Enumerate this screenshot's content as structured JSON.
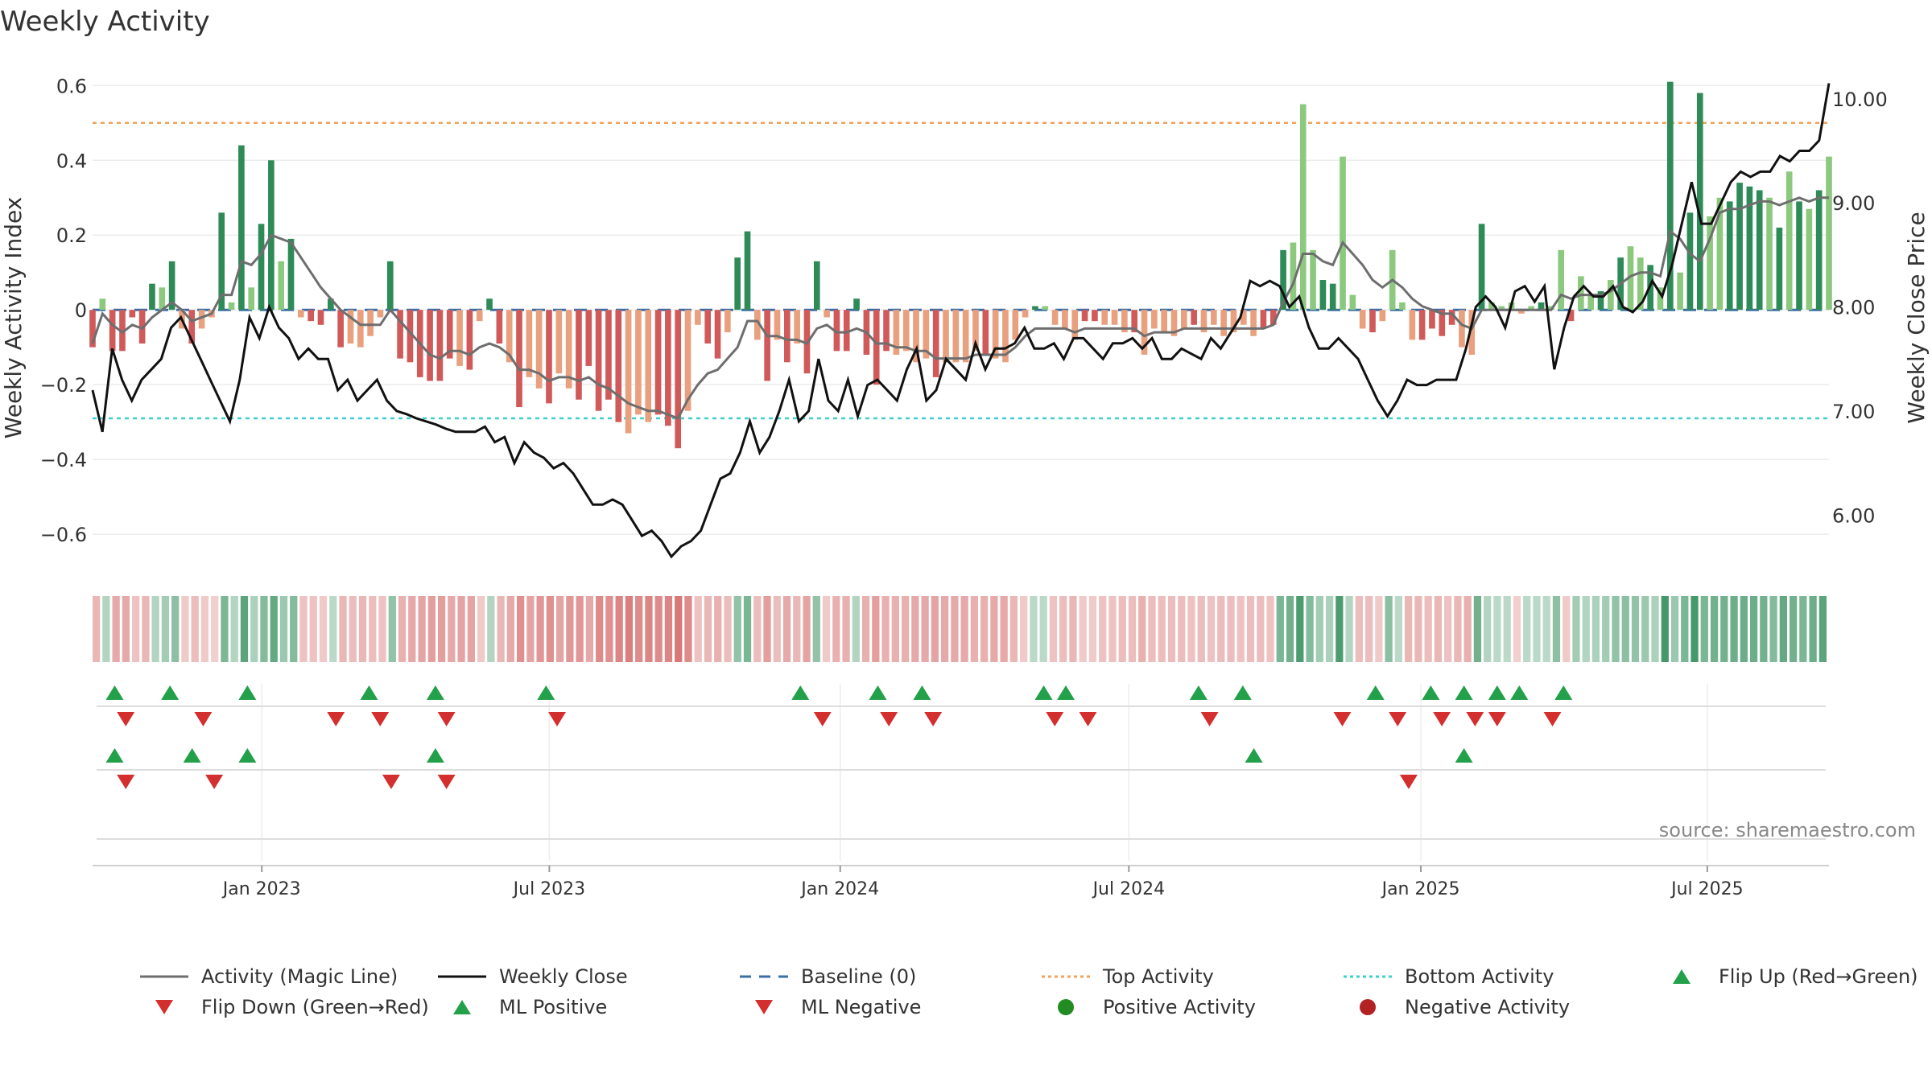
{
  "title": "Weekly Activity",
  "source": "source: sharemaestro.com",
  "colors": {
    "pos_strong": "#2e8b57",
    "pos_light": "#8cc97f",
    "neg_strong": "#d05a5a",
    "neg_light": "#e9a07e",
    "magic": "#6e6e6e",
    "close": "#111111",
    "baseline": "#3a6ea5",
    "top": "#f0a35a",
    "bottom": "#3fcfcf",
    "flip_up": "#22a04a",
    "flip_down": "#d32f2f",
    "pos_dot": "#228b22",
    "neg_dot": "#b22222"
  },
  "legend": [
    {
      "key": "magic",
      "label": "Activity (Magic Line)",
      "kind": "line"
    },
    {
      "key": "close",
      "label": "Weekly Close",
      "kind": "line"
    },
    {
      "key": "baseline",
      "label": "Baseline (0)",
      "kind": "dash"
    },
    {
      "key": "top",
      "label": "Top Activity",
      "kind": "dot"
    },
    {
      "key": "bottom",
      "label": "Bottom Activity",
      "kind": "dot"
    },
    {
      "key": "flip_up",
      "label": "Flip Up (Red→Green)",
      "kind": "up"
    },
    {
      "key": "flip_down",
      "label": "Flip Down (Green→Red)",
      "kind": "down"
    },
    {
      "key": "flip_up",
      "label": "ML Positive",
      "kind": "up"
    },
    {
      "key": "flip_down",
      "label": "ML Negative",
      "kind": "down"
    },
    {
      "key": "pos_dot",
      "label": "Positive Activity",
      "kind": "circle"
    },
    {
      "key": "neg_dot",
      "label": "Negative Activity",
      "kind": "circle"
    }
  ],
  "chart_data": {
    "type": "bar",
    "title": "Weekly Activity",
    "ylabel": "Weekly Activity Index",
    "y2label": "Weekly Close Price",
    "ylim": [
      -0.66,
      0.62
    ],
    "y2lim": [
      5.6,
      10.2
    ],
    "yticks": [
      0.6,
      0.4,
      0.2,
      0,
      -0.2,
      -0.4,
      -0.6
    ],
    "ytick_labels": [
      "0.6",
      "0.4",
      "0.2",
      "0",
      "−0.2",
      "−0.4",
      "−0.6"
    ],
    "y2ticks": [
      10,
      9,
      8,
      7,
      6
    ],
    "y2tick_labels": [
      "10.00",
      "9.00",
      "8.00",
      "7.00",
      "6.00"
    ],
    "top_activity": 0.5,
    "bottom_activity": -0.29,
    "x_start_week": 0,
    "x_end_week": 157,
    "xticks": [
      {
        "week": 15.3,
        "label": "Jan 2023"
      },
      {
        "week": 41.3,
        "label": "Jul 2023"
      },
      {
        "week": 67.6,
        "label": "Jan 2024"
      },
      {
        "week": 93.7,
        "label": "Jul 2024"
      },
      {
        "week": 120.1,
        "label": "Jan 2025"
      },
      {
        "week": 146,
        "label": "Jul 2025"
      }
    ],
    "activity": [
      -0.1,
      0.03,
      -0.11,
      -0.11,
      -0.02,
      -0.09,
      0.07,
      0.06,
      0.13,
      -0.05,
      -0.09,
      -0.05,
      -0.02,
      0.26,
      0.02,
      0.44,
      0.06,
      0.23,
      0.4,
      0.13,
      0.19,
      -0.02,
      -0.03,
      -0.04,
      0.03,
      -0.1,
      -0.09,
      -0.1,
      -0.07,
      -0.02,
      0.13,
      -0.13,
      -0.14,
      -0.18,
      -0.19,
      -0.19,
      -0.13,
      -0.15,
      -0.16,
      -0.03,
      0.03,
      -0.09,
      -0.14,
      -0.26,
      -0.18,
      -0.21,
      -0.25,
      -0.17,
      -0.21,
      -0.24,
      -0.15,
      -0.27,
      -0.24,
      -0.3,
      -0.33,
      -0.28,
      -0.3,
      -0.28,
      -0.31,
      -0.37,
      -0.27,
      -0.04,
      -0.09,
      -0.13,
      -0.06,
      0.14,
      0.21,
      -0.08,
      -0.19,
      -0.08,
      -0.14,
      -0.09,
      -0.17,
      0.13,
      -0.02,
      -0.11,
      -0.11,
      0.03,
      -0.12,
      -0.2,
      -0.11,
      -0.12,
      -0.11,
      -0.14,
      -0.13,
      -0.18,
      -0.14,
      -0.14,
      -0.14,
      -0.11,
      -0.12,
      -0.13,
      -0.14,
      -0.08,
      -0.02,
      0.01,
      0.01,
      -0.04,
      -0.05,
      -0.08,
      -0.03,
      -0.03,
      -0.04,
      -0.04,
      -0.06,
      -0.06,
      -0.12,
      -0.05,
      -0.06,
      -0.07,
      -0.05,
      -0.04,
      -0.06,
      -0.04,
      -0.07,
      -0.06,
      -0.04,
      -0.07,
      -0.05,
      -0.04,
      0.16,
      0.18,
      0.55,
      0.16,
      0.08,
      0.07,
      0.41,
      0.04,
      -0.05,
      -0.06,
      -0.03,
      0.16,
      0.02,
      -0.08,
      -0.08,
      -0.05,
      -0.07,
      -0.04,
      -0.1,
      -0.12,
      0.23,
      0.02,
      0.01,
      0.02,
      -0.01,
      0.01,
      0.02,
      0.01,
      0.16,
      -0.03,
      0.09,
      0.04,
      0.05,
      0.08,
      0.14,
      0.17,
      0.14,
      0.12,
      0.06,
      0.61,
      0.1,
      0.26,
      0.58,
      0.25,
      0.3,
      0.29,
      0.34,
      0.33,
      0.32,
      0.3,
      0.22,
      0.37,
      0.29,
      0.27,
      0.32,
      0.41
    ],
    "activity_light": [
      false,
      true,
      false,
      false,
      false,
      false,
      false,
      true,
      false,
      true,
      false,
      true,
      true,
      false,
      true,
      false,
      true,
      false,
      false,
      true,
      false,
      true,
      false,
      false,
      false,
      false,
      true,
      true,
      true,
      true,
      false,
      false,
      false,
      false,
      false,
      false,
      false,
      true,
      false,
      true,
      false,
      false,
      true,
      false,
      true,
      true,
      false,
      true,
      true,
      false,
      false,
      false,
      false,
      false,
      true,
      true,
      true,
      false,
      false,
      false,
      true,
      true,
      false,
      false,
      true,
      false,
      false,
      true,
      false,
      true,
      false,
      true,
      false,
      false,
      true,
      false,
      false,
      false,
      false,
      false,
      false,
      true,
      true,
      true,
      true,
      false,
      true,
      true,
      true,
      true,
      false,
      true,
      true,
      true,
      true,
      false,
      true,
      true,
      true,
      true,
      false,
      false,
      true,
      true,
      true,
      false,
      true,
      true,
      true,
      true,
      true,
      false,
      true,
      true,
      true,
      true,
      true,
      true,
      false,
      false,
      false,
      true,
      true,
      true,
      false,
      false,
      true,
      true,
      true,
      false,
      true,
      true,
      true,
      true,
      false,
      false,
      false,
      false,
      true,
      true,
      false,
      true,
      true,
      true,
      true,
      true,
      false,
      true,
      true,
      false,
      true,
      true,
      false,
      true,
      false,
      true,
      true,
      false,
      true,
      false,
      true,
      false,
      false,
      true,
      true,
      false,
      false,
      false,
      false,
      true,
      false,
      true,
      false,
      true,
      false,
      true
    ],
    "magic_line": [
      -0.09,
      -0.01,
      -0.04,
      -0.06,
      -0.04,
      -0.05,
      -0.02,
      0.0,
      0.02,
      0.0,
      -0.03,
      -0.02,
      -0.01,
      0.04,
      0.04,
      0.13,
      0.12,
      0.15,
      0.2,
      0.19,
      0.18,
      0.14,
      0.1,
      0.06,
      0.03,
      0.0,
      -0.02,
      -0.04,
      -0.04,
      -0.04,
      0.0,
      -0.03,
      -0.06,
      -0.09,
      -0.12,
      -0.13,
      -0.11,
      -0.11,
      -0.12,
      -0.1,
      -0.09,
      -0.1,
      -0.12,
      -0.16,
      -0.16,
      -0.17,
      -0.19,
      -0.18,
      -0.18,
      -0.19,
      -0.18,
      -0.2,
      -0.21,
      -0.23,
      -0.25,
      -0.26,
      -0.27,
      -0.27,
      -0.28,
      -0.29,
      -0.24,
      -0.2,
      -0.17,
      -0.16,
      -0.13,
      -0.1,
      -0.03,
      -0.03,
      -0.07,
      -0.07,
      -0.08,
      -0.08,
      -0.09,
      -0.05,
      -0.04,
      -0.06,
      -0.06,
      -0.05,
      -0.06,
      -0.09,
      -0.09,
      -0.1,
      -0.1,
      -0.11,
      -0.11,
      -0.13,
      -0.13,
      -0.13,
      -0.13,
      -0.12,
      -0.12,
      -0.12,
      -0.12,
      -0.1,
      -0.07,
      -0.05,
      -0.05,
      -0.05,
      -0.05,
      -0.06,
      -0.05,
      -0.05,
      -0.05,
      -0.05,
      -0.05,
      -0.05,
      -0.07,
      -0.06,
      -0.06,
      -0.06,
      -0.05,
      -0.05,
      -0.05,
      -0.05,
      -0.05,
      -0.05,
      -0.05,
      -0.05,
      -0.05,
      -0.04,
      0.02,
      0.07,
      0.15,
      0.15,
      0.13,
      0.12,
      0.18,
      0.15,
      0.12,
      0.08,
      0.06,
      0.08,
      0.06,
      0.03,
      0.01,
      0.0,
      -0.01,
      -0.01,
      -0.04,
      -0.05,
      0.0,
      0.0,
      0.0,
      0.0,
      0.0,
      0.0,
      0.0,
      0.0,
      0.04,
      0.03,
      0.04,
      0.04,
      0.04,
      0.05,
      0.07,
      0.09,
      0.1,
      0.1,
      0.09,
      0.21,
      0.19,
      0.15,
      0.13,
      0.19,
      0.26,
      0.27,
      0.27,
      0.28,
      0.29,
      0.29,
      0.28,
      0.29,
      0.3,
      0.29,
      0.3,
      0.3
    ],
    "weekly_close": [
      7.2,
      6.8,
      7.6,
      7.3,
      7.1,
      7.3,
      7.4,
      7.5,
      7.8,
      7.9,
      7.7,
      7.5,
      7.3,
      7.1,
      6.9,
      7.3,
      7.9,
      7.7,
      8.0,
      7.8,
      7.7,
      7.5,
      7.6,
      7.5,
      7.5,
      7.2,
      7.3,
      7.1,
      7.2,
      7.3,
      7.1,
      7.0,
      6.97,
      6.93,
      6.9,
      6.87,
      6.83,
      6.8,
      6.8,
      6.8,
      6.85,
      6.7,
      6.75,
      6.5,
      6.7,
      6.6,
      6.55,
      6.45,
      6.5,
      6.4,
      6.25,
      6.1,
      6.1,
      6.15,
      6.1,
      5.95,
      5.8,
      5.85,
      5.75,
      5.6,
      5.7,
      5.75,
      5.85,
      6.1,
      6.35,
      6.4,
      6.6,
      6.9,
      6.6,
      6.75,
      7.0,
      7.3,
      6.9,
      7.0,
      7.5,
      7.1,
      7.0,
      7.3,
      6.95,
      7.25,
      7.3,
      7.2,
      7.1,
      7.4,
      7.6,
      7.1,
      7.2,
      7.5,
      7.4,
      7.3,
      7.65,
      7.4,
      7.6,
      7.6,
      7.65,
      7.8,
      7.6,
      7.6,
      7.65,
      7.5,
      7.7,
      7.7,
      7.6,
      7.5,
      7.65,
      7.65,
      7.7,
      7.6,
      7.7,
      7.5,
      7.5,
      7.6,
      7.55,
      7.5,
      7.7,
      7.6,
      7.75,
      7.9,
      8.25,
      8.2,
      8.25,
      8.2,
      8.0,
      8.1,
      7.8,
      7.6,
      7.6,
      7.7,
      7.6,
      7.5,
      7.3,
      7.1,
      6.95,
      7.1,
      7.3,
      7.25,
      7.25,
      7.3,
      7.3,
      7.3,
      7.6,
      8.0,
      8.1,
      8.0,
      7.8,
      8.15,
      8.2,
      8.05,
      8.2,
      7.4,
      7.8,
      8.1,
      8.2,
      8.1,
      8.1,
      8.2,
      8.0,
      7.95,
      8.05,
      8.25,
      8.1,
      8.4,
      8.8,
      9.2,
      8.8,
      8.8,
      9.0,
      9.2,
      9.3,
      9.25,
      9.3,
      9.3,
      9.45,
      9.4,
      9.5,
      9.5,
      9.6,
      10.15
    ],
    "heat_strip": [
      -0.35,
      0.25,
      -0.45,
      -0.45,
      -0.25,
      -0.35,
      0.25,
      0.35,
      0.5,
      -0.2,
      -0.3,
      -0.2,
      -0.15,
      0.6,
      0.25,
      0.8,
      0.3,
      0.55,
      0.75,
      0.4,
      0.55,
      -0.25,
      -0.25,
      -0.2,
      0.2,
      -0.35,
      -0.3,
      -0.35,
      -0.3,
      -0.25,
      0.45,
      -0.4,
      -0.45,
      -0.5,
      -0.55,
      -0.55,
      -0.45,
      -0.5,
      -0.5,
      -0.2,
      0.25,
      -0.35,
      -0.45,
      -0.65,
      -0.5,
      -0.6,
      -0.65,
      -0.5,
      -0.6,
      -0.6,
      -0.45,
      -0.7,
      -0.65,
      -0.75,
      -0.8,
      -0.7,
      -0.75,
      -0.7,
      -0.75,
      -0.85,
      -0.7,
      -0.25,
      -0.35,
      -0.4,
      -0.3,
      0.45,
      0.6,
      -0.3,
      -0.55,
      -0.3,
      -0.45,
      -0.35,
      -0.5,
      0.45,
      -0.2,
      -0.4,
      -0.4,
      0.25,
      -0.4,
      -0.55,
      -0.4,
      -0.4,
      -0.4,
      -0.45,
      -0.45,
      -0.5,
      -0.45,
      -0.45,
      -0.45,
      -0.4,
      -0.4,
      -0.45,
      -0.45,
      -0.35,
      -0.2,
      0.2,
      0.2,
      -0.25,
      -0.3,
      -0.35,
      -0.2,
      -0.2,
      -0.25,
      -0.25,
      -0.3,
      -0.3,
      -0.4,
      -0.3,
      -0.3,
      -0.3,
      -0.3,
      -0.25,
      -0.3,
      -0.25,
      -0.3,
      -0.3,
      -0.25,
      -0.3,
      -0.3,
      -0.25,
      0.6,
      0.65,
      0.9,
      0.55,
      0.35,
      0.3,
      0.9,
      0.25,
      -0.3,
      -0.3,
      -0.2,
      0.5,
      0.2,
      -0.35,
      -0.35,
      -0.3,
      -0.35,
      -0.25,
      -0.35,
      -0.4,
      0.65,
      0.25,
      0.2,
      0.2,
      -0.15,
      0.2,
      0.2,
      0.2,
      0.5,
      -0.2,
      0.35,
      0.25,
      0.3,
      0.35,
      0.45,
      0.5,
      0.45,
      0.4,
      0.3,
      0.95,
      0.4,
      0.6,
      0.95,
      0.6,
      0.65,
      0.65,
      0.7,
      0.7,
      0.7,
      0.65,
      0.55,
      0.75,
      0.65,
      0.6,
      0.7,
      0.8
    ],
    "flip_up_row1": [
      2,
      7,
      14,
      25,
      31,
      41,
      64,
      71,
      75,
      86,
      88,
      100,
      104,
      116,
      121,
      124,
      127,
      129,
      133
    ],
    "flip_down_row1": [
      3,
      10,
      22,
      26,
      32,
      42,
      66,
      72,
      76,
      87,
      90,
      101,
      113,
      118,
      122,
      125,
      127,
      132
    ],
    "flip_up_row2": [
      2,
      9,
      14,
      31,
      105,
      124
    ],
    "flip_down_row2": [
      3,
      11,
      27,
      32,
      119
    ]
  }
}
